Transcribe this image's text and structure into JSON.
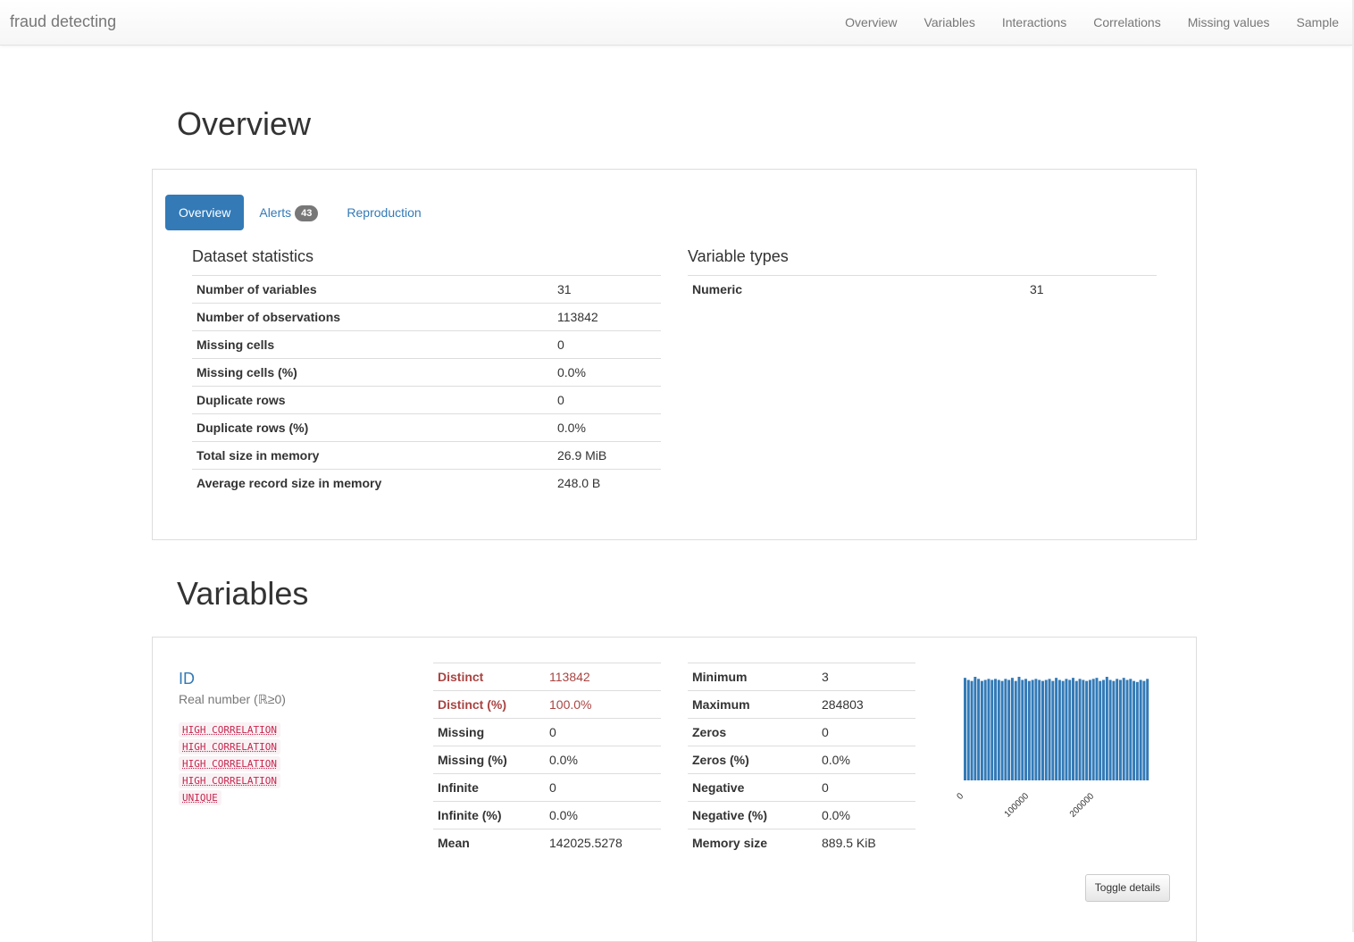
{
  "nav": {
    "brand": "fraud detecting",
    "links": [
      "Overview",
      "Variables",
      "Interactions",
      "Correlations",
      "Missing values",
      "Sample"
    ]
  },
  "overview": {
    "title": "Overview",
    "tabs": [
      {
        "label": "Overview"
      },
      {
        "label": "Alerts",
        "badge": "43"
      },
      {
        "label": "Reproduction"
      }
    ],
    "dataset_statistics": {
      "title": "Dataset statistics",
      "rows": [
        {
          "label": "Number of variables",
          "value": "31"
        },
        {
          "label": "Number of observations",
          "value": "113842"
        },
        {
          "label": "Missing cells",
          "value": "0"
        },
        {
          "label": "Missing cells (%)",
          "value": "0.0%"
        },
        {
          "label": "Duplicate rows",
          "value": "0"
        },
        {
          "label": "Duplicate rows (%)",
          "value": "0.0%"
        },
        {
          "label": "Total size in memory",
          "value": "26.9 MiB"
        },
        {
          "label": "Average record size in memory",
          "value": "248.0 B"
        }
      ]
    },
    "variable_types": {
      "title": "Variable types",
      "rows": [
        {
          "label": "Numeric",
          "value": "31"
        }
      ]
    }
  },
  "variables": {
    "title": "Variables",
    "items": [
      {
        "name": "ID",
        "type": "Real number (ℝ≥0)",
        "tags": [
          "HIGH CORRELATION",
          "HIGH CORRELATION",
          "HIGH CORRELATION",
          "HIGH CORRELATION",
          "UNIQUE"
        ],
        "stats_left": [
          {
            "label": "Distinct",
            "value": "113842",
            "alert": true
          },
          {
            "label": "Distinct (%)",
            "value": "100.0%",
            "alert": true
          },
          {
            "label": "Missing",
            "value": "0"
          },
          {
            "label": "Missing (%)",
            "value": "0.0%"
          },
          {
            "label": "Infinite",
            "value": "0"
          },
          {
            "label": "Infinite (%)",
            "value": "0.0%"
          },
          {
            "label": "Mean",
            "value": "142025.5278"
          }
        ],
        "stats_right": [
          {
            "label": "Minimum",
            "value": "3"
          },
          {
            "label": "Maximum",
            "value": "284803"
          },
          {
            "label": "Zeros",
            "value": "0"
          },
          {
            "label": "Zeros (%)",
            "value": "0.0%"
          },
          {
            "label": "Negative",
            "value": "0"
          },
          {
            "label": "Negative (%)",
            "value": "0.0%"
          },
          {
            "label": "Memory size",
            "value": "889.5 KiB"
          }
        ],
        "toggle_label": "Toggle details"
      }
    ]
  },
  "chart_data": {
    "type": "bar",
    "xlim": [
      0,
      284803
    ],
    "x_ticks": [
      "0",
      "100000",
      "200000"
    ],
    "bar_color": "#337ab7",
    "relative_heights": [
      0.99,
      0.97,
      0.96,
      1.0,
      0.98,
      0.96,
      0.97,
      0.98,
      0.97,
      0.98,
      0.97,
      0.96,
      0.98,
      0.97,
      0.99,
      0.96,
      1.0,
      0.97,
      0.98,
      0.96,
      0.97,
      0.98,
      0.97,
      0.96,
      0.97,
      0.98,
      0.96,
      0.99,
      0.97,
      0.96,
      0.98,
      0.97,
      0.99,
      0.96,
      0.98,
      0.97,
      0.96,
      0.97,
      0.98,
      0.99,
      0.96,
      0.97,
      1.0,
      0.97,
      0.96,
      0.98,
      0.97,
      0.99,
      0.97,
      0.98,
      0.96,
      0.95,
      0.97,
      0.96,
      0.98
    ]
  }
}
